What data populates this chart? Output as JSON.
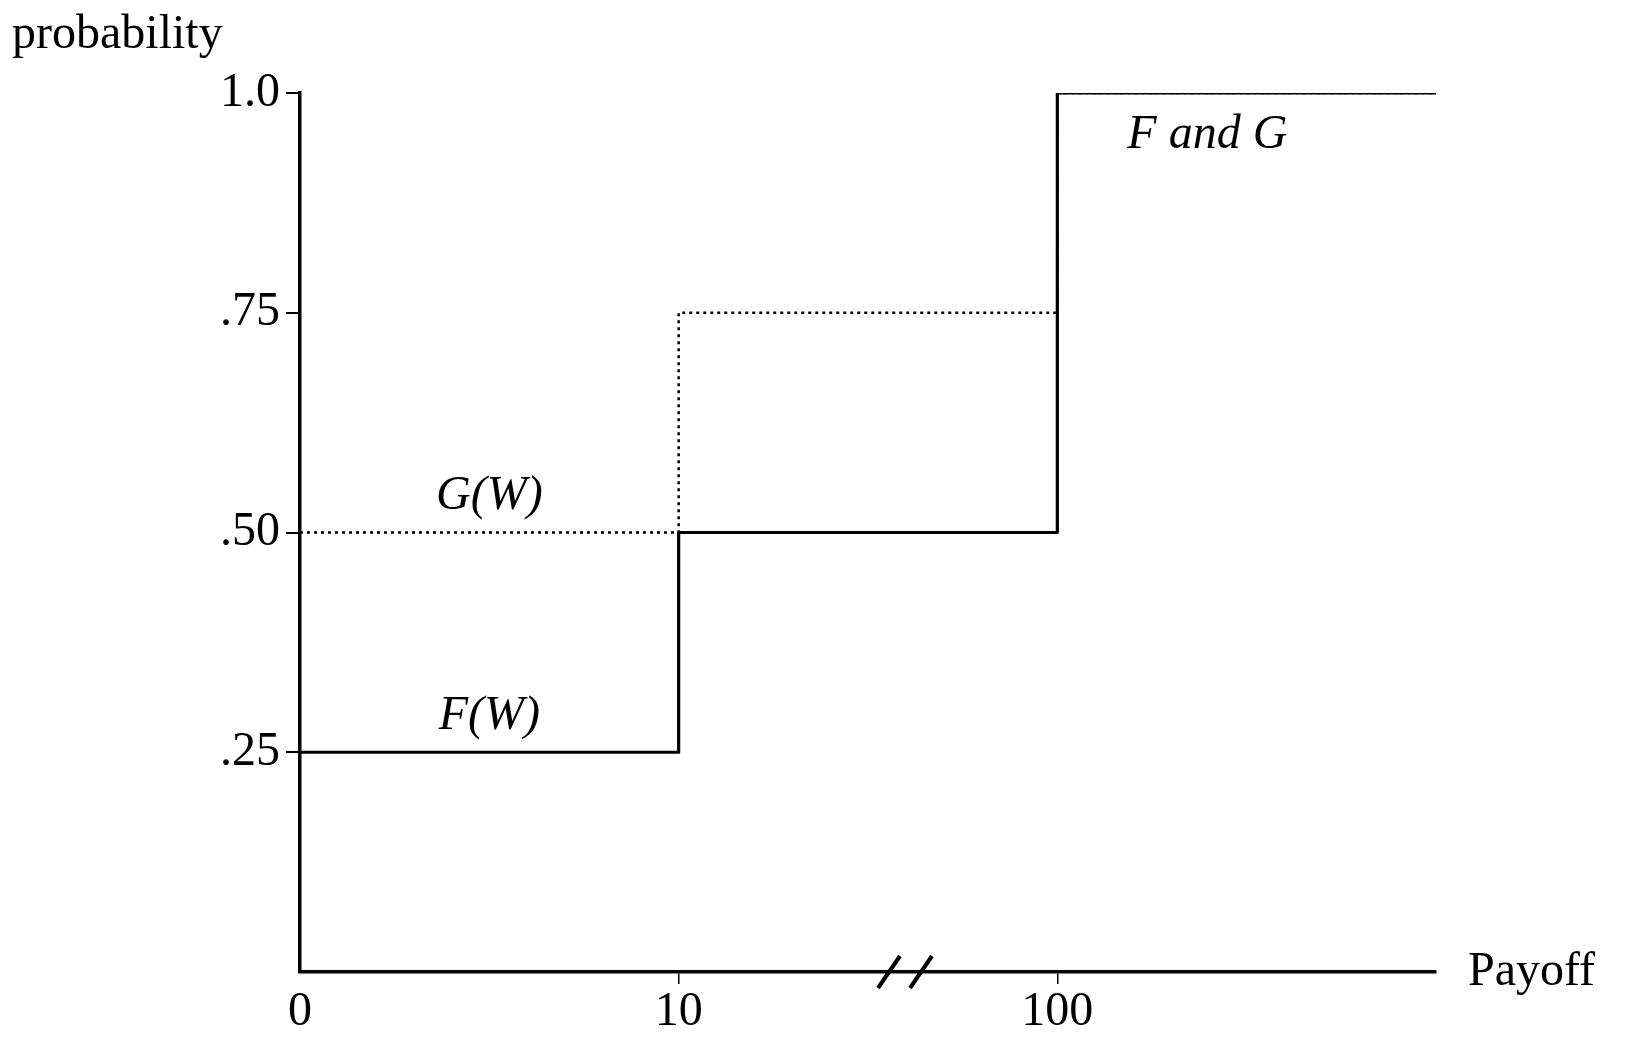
{
  "chart_data": {
    "type": "step",
    "categories": [
      "0",
      "10",
      "100",
      null
    ],
    "series": [
      {
        "name": "G(W)",
        "color": "#000000",
        "values": [
          0.5,
          0.75,
          1.0,
          1.0
        ],
        "line_style": "dotted"
      },
      {
        "name": "F(W)",
        "color": "#000000",
        "values": [
          0.25,
          0.5,
          1.0,
          1.0
        ],
        "line_style": "solid"
      }
    ],
    "ylim": [
      0,
      1
    ],
    "yticks": [
      {
        "value": 0.25,
        "label": ".25"
      },
      {
        "value": 0.5,
        "label": ".50"
      },
      {
        "value": 0.75,
        "label": ".75"
      },
      {
        "value": 1.0,
        "label": "1.0"
      }
    ],
    "xlabel": "Payoff",
    "ylabel": "probability",
    "annotations": [
      {
        "text": "F and G",
        "x": "100",
        "y": 1.0
      }
    ],
    "grid": false,
    "legend": false,
    "marker": "none"
  }
}
